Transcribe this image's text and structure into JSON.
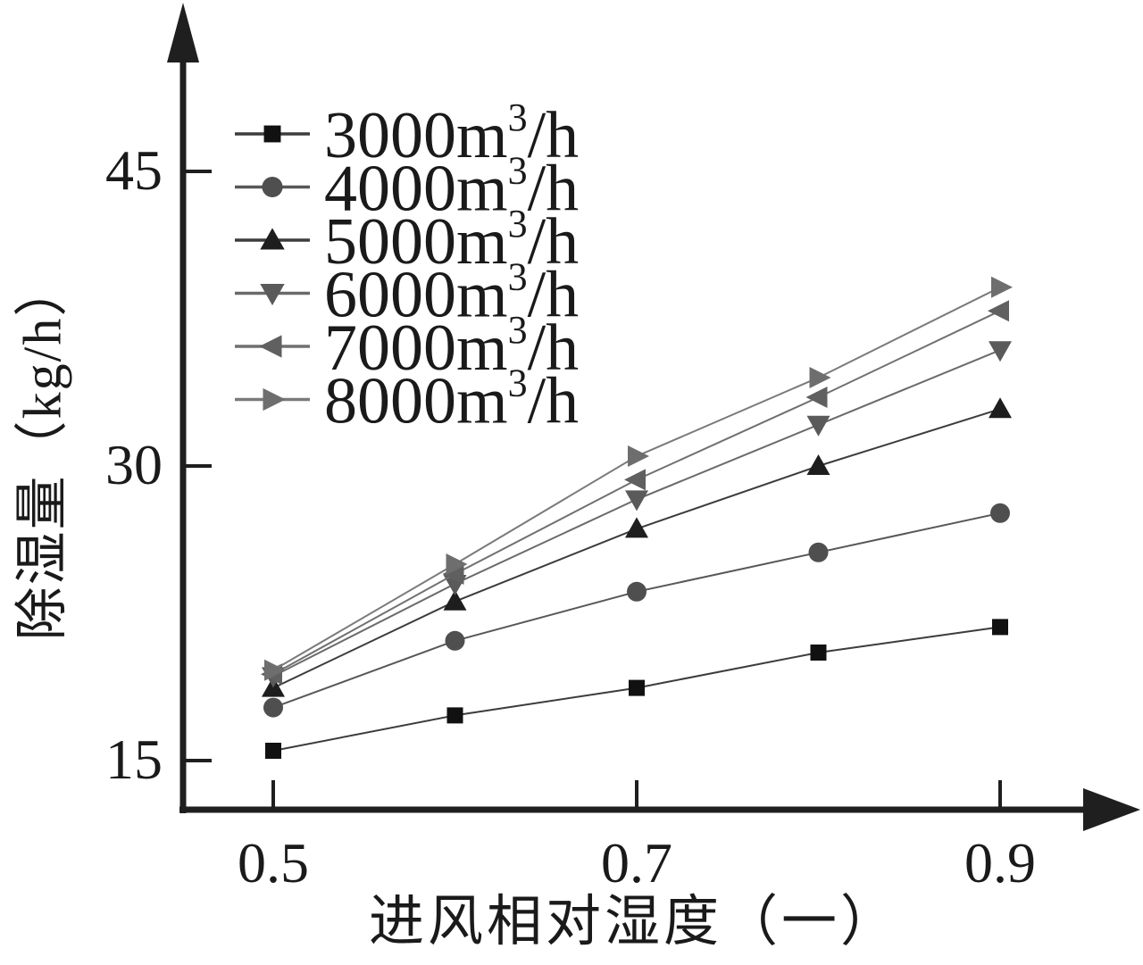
{
  "figure": {
    "background": "#ffffff",
    "text_color": "#1a1a1a",
    "axis_color": "#1f1f1f"
  },
  "chart_data": {
    "type": "line",
    "title": "",
    "xlabel": "进风相对湿度（一）",
    "ylabel": "除湿量（kg/h）",
    "x": [
      0.5,
      0.6,
      0.7,
      0.8,
      0.9
    ],
    "xlim": [
      0.45,
      0.975
    ],
    "ylim": [
      12.5,
      51
    ],
    "grid": false,
    "legend_position": "upper-left-inside",
    "x_ticks": [
      {
        "value": 0.5,
        "label": "0.5"
      },
      {
        "value": 0.7,
        "label": "0.7"
      },
      {
        "value": 0.9,
        "label": "0.9"
      }
    ],
    "y_ticks": [
      {
        "value": 15,
        "label": "15"
      },
      {
        "value": 30,
        "label": "30"
      },
      {
        "value": 45,
        "label": "45"
      }
    ],
    "series": [
      {
        "label": "3000m³/h",
        "label_base": "3000m",
        "label_sup": "3",
        "label_suffix": "/h",
        "marker": "square",
        "marker_color": "#111111",
        "line_color": "#3c3c3c",
        "values": [
          15.5,
          17.3,
          18.7,
          20.5,
          21.8
        ]
      },
      {
        "label": "4000m³/h",
        "label_base": "4000m",
        "label_sup": "3",
        "label_suffix": "/h",
        "marker": "circle",
        "marker_color": "#4f4f4f",
        "line_color": "#575757",
        "values": [
          17.7,
          21.1,
          23.6,
          25.6,
          27.6
        ]
      },
      {
        "label": "5000m³/h",
        "label_base": "5000m",
        "label_sup": "3",
        "label_suffix": "/h",
        "marker": "triangle-up",
        "marker_color": "#1e1e1e",
        "line_color": "#3c3c3c",
        "values": [
          18.7,
          23.1,
          26.8,
          30.0,
          32.9
        ]
      },
      {
        "label": "6000m³/h",
        "label_base": "6000m",
        "label_sup": "3",
        "label_suffix": "/h",
        "marker": "triangle-down",
        "marker_color": "#5a5a5a",
        "line_color": "#6a6a6a",
        "values": [
          19.3,
          24.0,
          28.3,
          32.1,
          35.9
        ]
      },
      {
        "label": "7000m³/h",
        "label_base": "7000m",
        "label_sup": "3",
        "label_suffix": "/h",
        "marker": "triangle-left",
        "marker_color": "#606060",
        "line_color": "#707070",
        "values": [
          19.4,
          24.5,
          29.3,
          33.5,
          37.9
        ]
      },
      {
        "label": "8000m³/h",
        "label_base": "8000m",
        "label_sup": "3",
        "label_suffix": "/h",
        "marker": "triangle-right",
        "marker_color": "#6e6e6e",
        "line_color": "#7a7a7a",
        "values": [
          19.6,
          25.0,
          30.5,
          34.5,
          39.1
        ]
      }
    ]
  }
}
